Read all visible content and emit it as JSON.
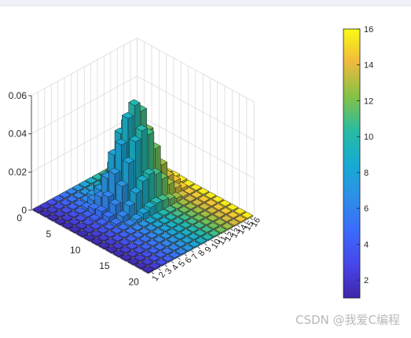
{
  "watermark": "CSDN @我爱C编程",
  "chart_data": {
    "type": "bar3",
    "title": "",
    "xlabel": "",
    "ylabel": "",
    "zlabel": "",
    "x_tick_labels": [
      "1",
      "2",
      "3",
      "4",
      "5",
      "6",
      "7",
      "8",
      "9",
      "10",
      "11",
      "12",
      "13",
      "14",
      "15",
      "16"
    ],
    "y_tick_labels": [
      "0",
      "5",
      "10",
      "15",
      "20"
    ],
    "z_tick_labels": [
      "0",
      "0.02",
      "0.04",
      "0.06"
    ],
    "zlim": [
      0,
      0.06
    ],
    "grid": true,
    "colorbar": {
      "colormap": "parula",
      "range": [
        1,
        16
      ],
      "ticks": [
        "2",
        "4",
        "6",
        "8",
        "10",
        "12",
        "14",
        "16"
      ]
    },
    "grid_size": [
      16,
      16
    ],
    "peak": {
      "value": 0.05,
      "row": 9,
      "col": 5,
      "spread_rows": 2.2,
      "spread_cols": 1.4
    }
  }
}
